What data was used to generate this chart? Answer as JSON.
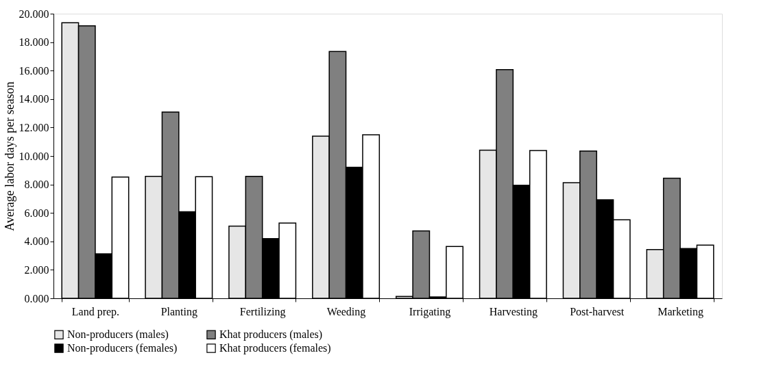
{
  "chart_data": {
    "type": "bar",
    "ylabel": "Average labor days per season",
    "categories": [
      "Land prep.",
      "Planting",
      "Fertilizing",
      "Weeding",
      "Irrigating",
      "Harvesting",
      "Post-harvest",
      "Marketing"
    ],
    "series": [
      {
        "name": "Non-producers (males)",
        "color": "#e6e6e6",
        "values": [
          19.36,
          8.57,
          5.07,
          11.39,
          0.13,
          10.41,
          8.13,
          3.42
        ]
      },
      {
        "name": "Khat producers (males)",
        "color": "#808080",
        "values": [
          19.15,
          13.09,
          8.57,
          17.34,
          4.73,
          16.07,
          10.35,
          8.44
        ]
      },
      {
        "name": "Non-producers (females)",
        "color": "#000000",
        "values": [
          3.13,
          6.08,
          4.19,
          9.21,
          0.1,
          7.94,
          6.92,
          3.5
        ]
      },
      {
        "name": "Khat producers (females)",
        "color": "#ffffff",
        "values": [
          8.52,
          8.54,
          5.29,
          11.49,
          3.64,
          10.38,
          5.52,
          3.74
        ]
      }
    ],
    "ylim": [
      0,
      20
    ],
    "yticks": [
      {
        "value": 0,
        "label": "0.000"
      },
      {
        "value": 2,
        "label": "2.000"
      },
      {
        "value": 4,
        "label": "4.000"
      },
      {
        "value": 6,
        "label": "6.000"
      },
      {
        "value": 8,
        "label": "8.000"
      },
      {
        "value": 10,
        "label": "10.000"
      },
      {
        "value": 12,
        "label": "12.000"
      },
      {
        "value": 14,
        "label": "14.000"
      },
      {
        "value": 16,
        "label": "16.000"
      },
      {
        "value": 18,
        "label": "18.000"
      },
      {
        "value": 20,
        "label": "20.000"
      }
    ],
    "grid": false,
    "legend": "bottom"
  }
}
